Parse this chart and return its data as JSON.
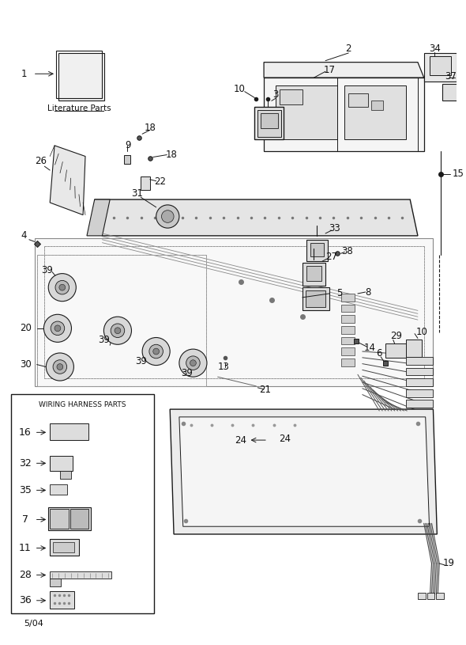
{
  "date_label": "5/04",
  "harness_title": "WIRING HARNESS PARTS",
  "lit_text": "Literature Parts",
  "bg": "#ffffff",
  "line_color": "#1a1a1a",
  "label_fs": 8.5,
  "harness_items": [
    "16",
    "32",
    "35",
    "7",
    "11",
    "28",
    "36"
  ]
}
